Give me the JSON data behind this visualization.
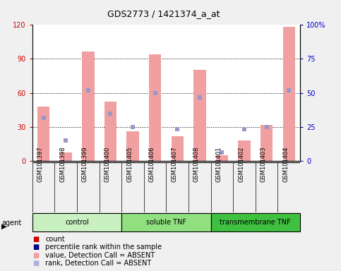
{
  "title": "GDS2773 / 1421374_a_at",
  "samples": [
    "GSM101397",
    "GSM101398",
    "GSM101399",
    "GSM101400",
    "GSM101405",
    "GSM101406",
    "GSM101407",
    "GSM101408",
    "GSM101401",
    "GSM101402",
    "GSM101403",
    "GSM101404"
  ],
  "pink_bars": [
    48,
    8,
    96,
    52,
    26,
    94,
    22,
    80,
    5,
    18,
    32,
    118
  ],
  "blue_squares": [
    38,
    18,
    62,
    42,
    30,
    60,
    28,
    56,
    8,
    28,
    30,
    62
  ],
  "groups": [
    {
      "label": "control",
      "start": 0,
      "end": 4,
      "color": "#c8f0c0"
    },
    {
      "label": "soluble TNF",
      "start": 4,
      "end": 8,
      "color": "#90e080"
    },
    {
      "label": "transmembrane TNF",
      "start": 8,
      "end": 12,
      "color": "#40c040"
    }
  ],
  "ylim_left": [
    0,
    120
  ],
  "ylim_right": [
    0,
    100
  ],
  "yticks_left": [
    0,
    30,
    60,
    90,
    120
  ],
  "ytick_labels_left": [
    "0",
    "30",
    "60",
    "90",
    "120"
  ],
  "yticks_right": [
    0,
    25,
    50,
    75,
    100
  ],
  "ytick_labels_right": [
    "0",
    "25",
    "50",
    "75",
    "100%"
  ],
  "grid_lines": [
    30,
    60,
    90
  ],
  "bar_color": "#f0a0a0",
  "blue_color": "#9898c8",
  "dark_blue": "#00008b",
  "dark_red": "#cc0000",
  "left_tick_color": "#cc0000",
  "right_tick_color": "#0000cc",
  "sample_bg_color": "#c8c8c8",
  "fig_bg_color": "#f0f0f0",
  "plot_bg_color": "#ffffff",
  "legend_labels": [
    "count",
    "percentile rank within the sample",
    "value, Detection Call = ABSENT",
    "rank, Detection Call = ABSENT"
  ],
  "legend_colors": [
    "#cc0000",
    "#00008b",
    "#f0a0a0",
    "#b0b0d8"
  ]
}
